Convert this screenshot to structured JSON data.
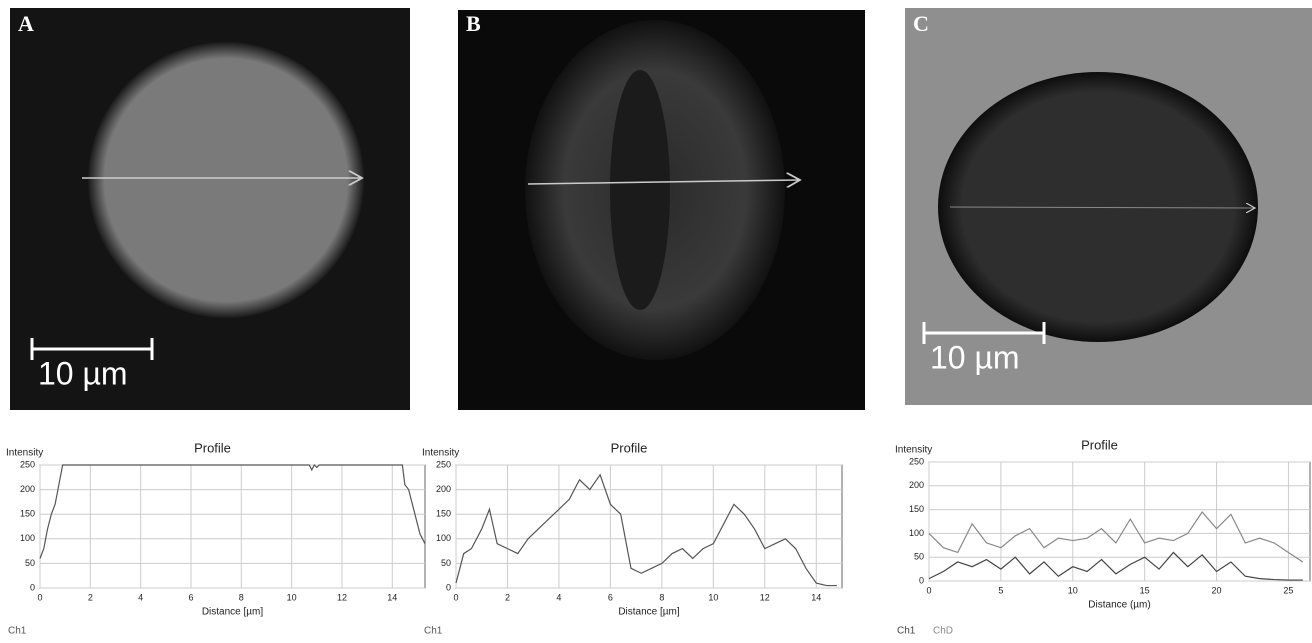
{
  "panels": [
    {
      "label": "A",
      "scale_bar": "10 µm"
    },
    {
      "label": "B"
    },
    {
      "label": "C",
      "scale_bar": "10 µm"
    }
  ],
  "chart_data": [
    {
      "type": "line",
      "title": "Profile",
      "y_label": "Intensity",
      "x_label": "Distance [µm]",
      "xlim": [
        0,
        15.3
      ],
      "xticks": [
        0,
        2,
        4,
        6,
        8,
        10,
        12,
        14
      ],
      "ylim": [
        0,
        250
      ],
      "yticks": [
        0,
        50,
        100,
        150,
        200,
        250
      ],
      "grid": true,
      "x": [
        0,
        0.15,
        0.3,
        0.45,
        0.6,
        0.75,
        0.9,
        10.7,
        10.8,
        10.9,
        11.0,
        11.1,
        14.4,
        14.5,
        14.65,
        14.8,
        14.95,
        15.1,
        15.3
      ],
      "series": [
        {
          "name": "Ch1",
          "color": "#555555",
          "values": [
            60,
            80,
            120,
            150,
            170,
            210,
            250,
            250,
            240,
            250,
            245,
            250,
            250,
            210,
            200,
            170,
            140,
            110,
            90
          ]
        }
      ]
    },
    {
      "type": "line",
      "title": "Profile",
      "y_label": "Intensity",
      "x_label": "Distance [µm]",
      "xlim": [
        0,
        15
      ],
      "xticks": [
        0,
        2,
        4,
        6,
        8,
        10,
        12,
        14
      ],
      "ylim": [
        0,
        250
      ],
      "yticks": [
        0,
        50,
        100,
        150,
        200,
        250
      ],
      "grid": true,
      "x": [
        0,
        0.3,
        0.6,
        1,
        1.3,
        1.6,
        2,
        2.4,
        2.8,
        3.2,
        3.6,
        4,
        4.4,
        4.8,
        5.2,
        5.6,
        6,
        6.4,
        6.8,
        7.2,
        7.6,
        8,
        8.4,
        8.8,
        9.2,
        9.6,
        10,
        10.4,
        10.8,
        11.2,
        11.6,
        12,
        12.4,
        12.8,
        13.2,
        13.6,
        14,
        14.4,
        14.8
      ],
      "series": [
        {
          "name": "Ch1",
          "color": "#555555",
          "values": [
            10,
            70,
            80,
            120,
            160,
            90,
            80,
            70,
            100,
            120,
            140,
            160,
            180,
            220,
            200,
            230,
            170,
            150,
            40,
            30,
            40,
            50,
            70,
            80,
            60,
            80,
            90,
            130,
            170,
            150,
            120,
            80,
            90,
            100,
            80,
            40,
            10,
            5,
            5
          ]
        }
      ]
    },
    {
      "type": "line",
      "title": "Profile",
      "y_label": "Intensity",
      "x_label": "Distance (µm)",
      "xlim": [
        0,
        26.5
      ],
      "xticks": [
        0,
        5,
        10,
        15,
        20,
        25
      ],
      "ylim": [
        0,
        250
      ],
      "yticks": [
        0,
        50,
        100,
        150,
        200,
        250
      ],
      "grid": true,
      "x": [
        0,
        1,
        2,
        3,
        4,
        5,
        6,
        7,
        8,
        9,
        10,
        11,
        12,
        13,
        14,
        15,
        16,
        17,
        18,
        19,
        20,
        21,
        22,
        23,
        24,
        25,
        26
      ],
      "series": [
        {
          "name": "Ch1",
          "color": "#444444",
          "values": [
            5,
            20,
            40,
            30,
            45,
            25,
            50,
            15,
            40,
            10,
            30,
            20,
            45,
            15,
            35,
            50,
            25,
            60,
            30,
            55,
            20,
            40,
            10,
            5,
            3,
            2,
            2
          ]
        },
        {
          "name": "ChD",
          "color": "#888888",
          "values": [
            100,
            70,
            60,
            120,
            80,
            70,
            95,
            110,
            70,
            90,
            85,
            90,
            110,
            80,
            130,
            80,
            90,
            85,
            100,
            145,
            110,
            140,
            80,
            90,
            80,
            60,
            40
          ]
        }
      ]
    }
  ]
}
